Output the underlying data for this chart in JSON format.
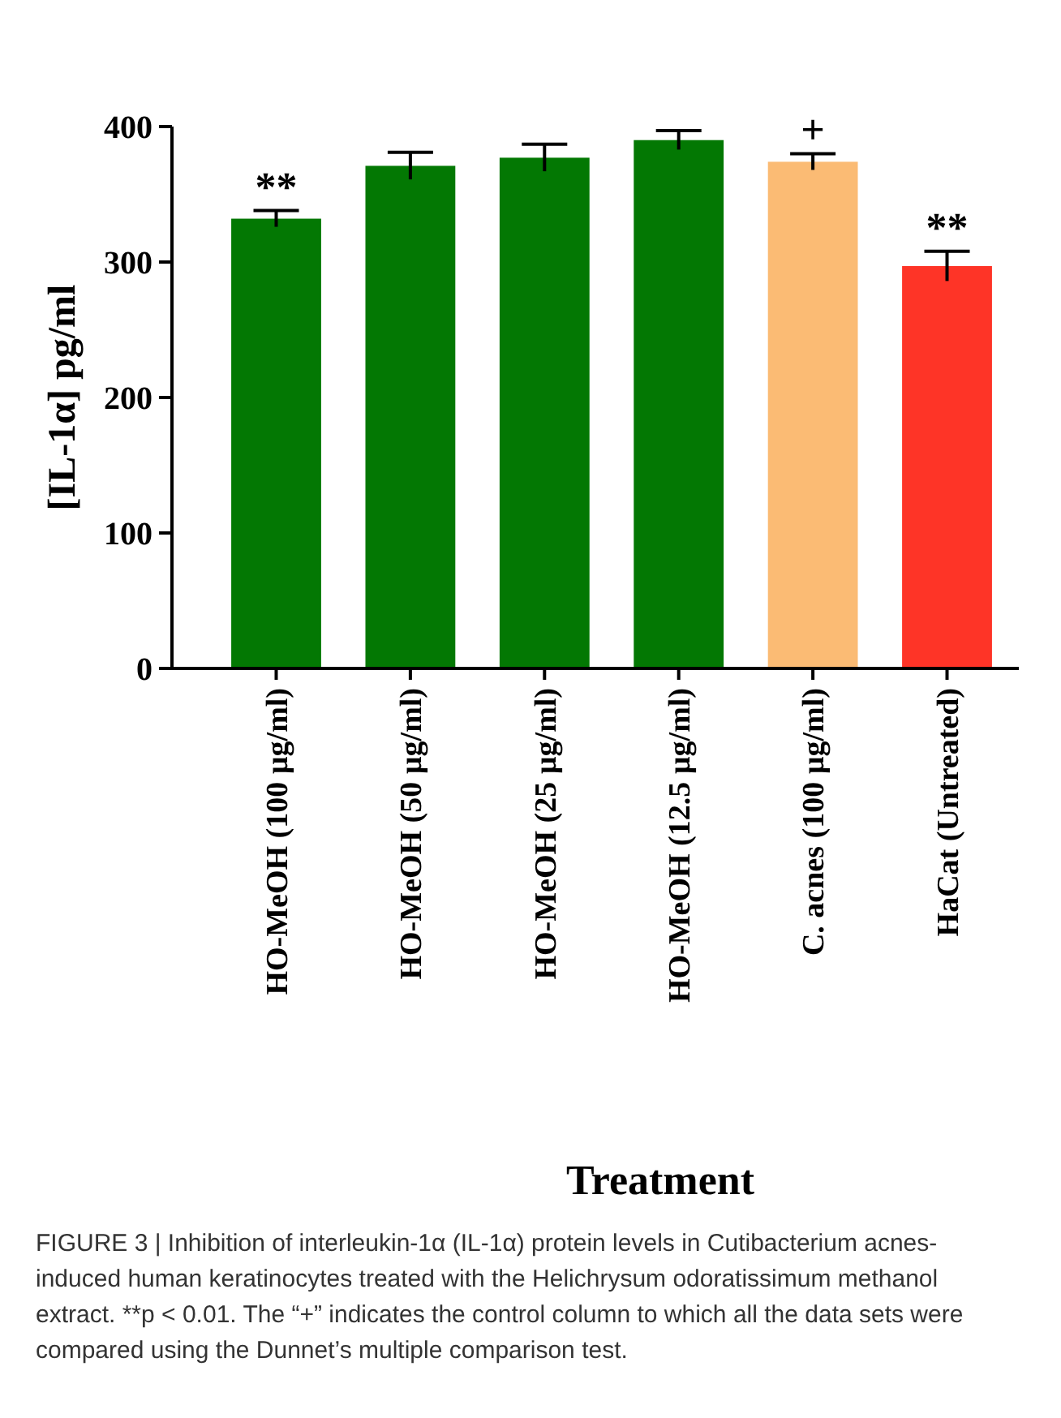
{
  "chart_data": {
    "type": "bar",
    "xlabel": "Treatment",
    "ylabel": "[IL-1α] pg/ml",
    "categories": [
      "HO-MeOH (100 µg/ml)",
      "HO-MeOH (50 µg/ml)",
      "HO-MeOH (25 µg/ml)",
      "HO-MeOH (12.5 µg/ml)",
      "C. acnes (100 µg/ml)",
      "HaCat (Untreated)"
    ],
    "values": [
      332,
      371,
      377,
      390,
      374,
      297
    ],
    "errors": [
      6,
      10,
      10,
      7,
      6,
      11
    ],
    "colors": [
      "#037803",
      "#037803",
      "#037803",
      "#037803",
      "#fbbb74",
      "#fe3427"
    ],
    "ylim": [
      0,
      400
    ],
    "yticks": [
      0,
      100,
      200,
      300,
      400
    ],
    "grid": false,
    "annotations": [
      {
        "text": "**",
        "x": "HO-MeOH (100 µg/ml)",
        "y": 338
      },
      {
        "text": "+",
        "x": "C. acnes (100 µg/ml)",
        "y": 380
      },
      {
        "text": "**",
        "x": "HaCat (Untreated)",
        "y": 308
      },
      "FIGURE 3 | Inhibition of interleukin-1α (IL-1α) protein levels in Cutibacterium acnes-induced human keratinocytes treated with the Helichrysum odoratissimum methanol extract. **p < 0.01. The “+” indicates the control column to which all the data sets were compared using the Dunnet’s multiple comparison test."
    ]
  }
}
